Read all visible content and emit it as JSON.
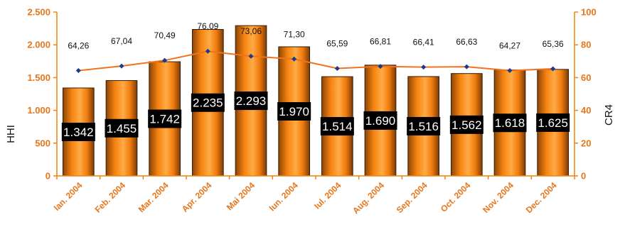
{
  "chart_data": {
    "type": "bar",
    "categories": [
      "Ian. 2004",
      "Feb. 2004",
      "Mar. 2004",
      "Apr. 2004",
      "Mai 2004",
      "Iun. 2004",
      "Iul. 2004",
      "Aug. 2004",
      "Sep. 2004",
      "Oct. 2004",
      "Nov. 2004",
      "Dec. 2004"
    ],
    "series": [
      {
        "name": "HHI",
        "type": "bar",
        "axis": "left",
        "values": [
          1342,
          1455,
          1742,
          2235,
          2293,
          1970,
          1514,
          1690,
          1516,
          1562,
          1618,
          1625
        ],
        "labels": [
          "1.342",
          "1.455",
          "1.742",
          "2.235",
          "2.293",
          "1.970",
          "1.514",
          "1.690",
          "1.516",
          "1.562",
          "1.618",
          "1.625"
        ]
      },
      {
        "name": "CR4",
        "type": "line",
        "axis": "right",
        "values": [
          64.26,
          67.04,
          70.49,
          76.09,
          73.06,
          71.3,
          65.59,
          66.81,
          66.41,
          66.63,
          64.27,
          65.36
        ],
        "labels": [
          "64,26",
          "67,04",
          "70,49",
          "76,09",
          "73,06",
          "71,30",
          "65,59",
          "66,81",
          "66,41",
          "66,63",
          "64,27",
          "65,36"
        ]
      }
    ],
    "ylabel": "HHI",
    "y2label": "CR4",
    "ylim": [
      0,
      2500
    ],
    "y2lim": [
      0,
      100
    ],
    "yticks": [
      0,
      500,
      1000,
      1500,
      2000,
      2500
    ],
    "ytick_labels": [
      "0",
      "500",
      "1.000",
      "1.500",
      "2.000",
      "2.500"
    ],
    "y2ticks": [
      0,
      20,
      40,
      60,
      80,
      100
    ],
    "y2tick_labels": [
      "0",
      "20",
      "40",
      "60",
      "80",
      "100"
    ],
    "grid": false,
    "colors": {
      "bar": "#f5820f",
      "bar_dark": "#7a3c08",
      "line": "#f0731e",
      "marker": "#1a3a8c",
      "axis": "#f0820f",
      "label_box": "#000000"
    }
  }
}
